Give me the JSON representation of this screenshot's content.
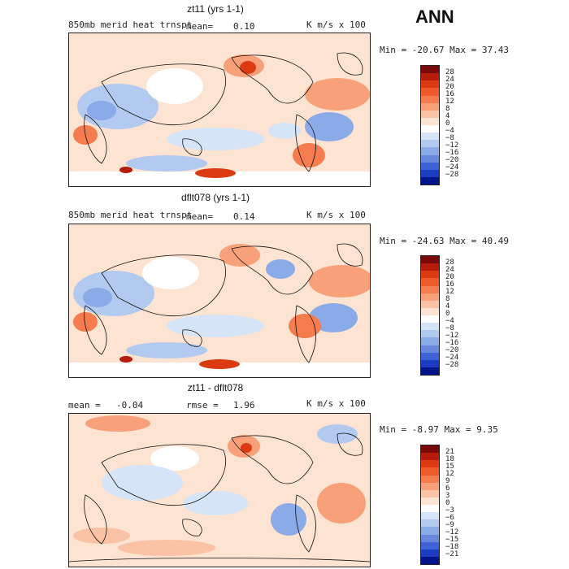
{
  "season": "ANN",
  "panels": [
    {
      "title": "zt11 (yrs 1-1)",
      "variable": "850mb merid heat trnspt",
      "mean_label": "mean=",
      "mean_value": "0.10",
      "units": "K m/s x 100",
      "minmax": "Min = -20.67 Max =  37.43",
      "levels": [
        "28",
        "24",
        "20",
        "16",
        "12",
        "8",
        "4",
        "0",
        "−4",
        "−8",
        "−12",
        "−16",
        "−20",
        "−24",
        "−28"
      ]
    },
    {
      "title": "dflt078 (yrs 1-1)",
      "variable": "850mb merid heat trnspt",
      "mean_label": "mean=",
      "mean_value": "0.14",
      "units": "K m/s x 100",
      "minmax": "Min = -24.63 Max =  40.49",
      "levels": [
        "28",
        "24",
        "20",
        "16",
        "12",
        "8",
        "4",
        "0",
        "−4",
        "−8",
        "−12",
        "−16",
        "−20",
        "−24",
        "−28"
      ]
    },
    {
      "title": "zt11 - dflt078",
      "mean_label": "mean =",
      "mean_value": "-0.04",
      "rmse_label": "rmse =",
      "rmse_value": "1.96",
      "units": "K m/s x 100",
      "minmax": "Min =  -8.97 Max =   9.35",
      "levels": [
        "21",
        "18",
        "15",
        "12",
        "9",
        "6",
        "3",
        "0",
        "−3",
        "−6",
        "−9",
        "−12",
        "−15",
        "−18",
        "−21"
      ]
    }
  ],
  "colors": {
    "scale": [
      "#7a0a0a",
      "#b51c0c",
      "#dc3b12",
      "#ee5a2a",
      "#f57c4f",
      "#f8a07a",
      "#fbc3a6",
      "#fde3d2",
      "#ffffff",
      "#d6e4f7",
      "#b2c9f0",
      "#8aaae8",
      "#6688dd",
      "#3f63d6",
      "#1c3cc2",
      "#00158a"
    ],
    "land_line": "#111111"
  }
}
